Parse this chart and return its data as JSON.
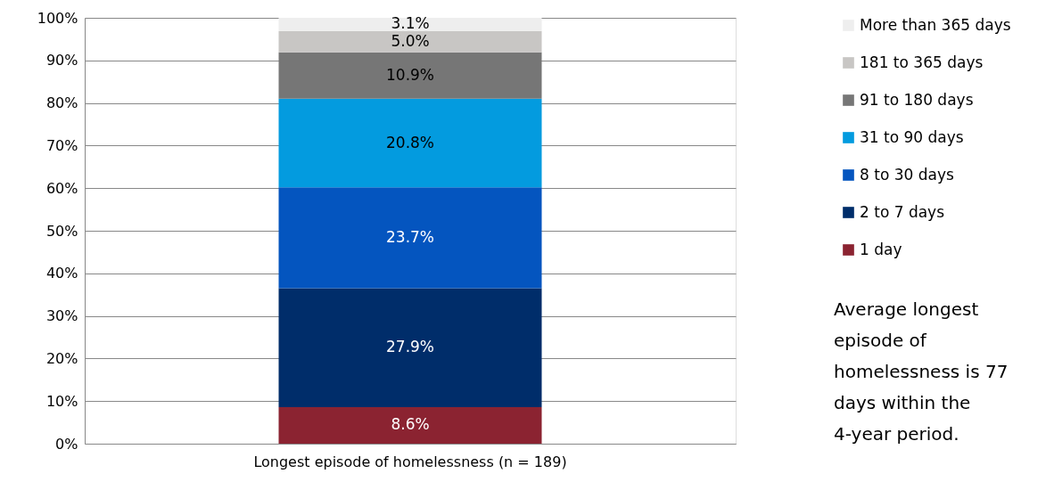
{
  "chart_data": {
    "type": "bar",
    "stacked": true,
    "categories": [
      "Longest episode of homelessness (n = 189)"
    ],
    "series": [
      {
        "name": "1 day",
        "color": "#8b2331",
        "values": [
          8.6
        ],
        "value_labels": [
          "8.6%"
        ]
      },
      {
        "name": "2 to 7 days",
        "color": "#002d6a",
        "values": [
          27.9
        ],
        "value_labels": [
          "27.9%"
        ]
      },
      {
        "name": "8 to 30 days",
        "color": "#0455bf",
        "values": [
          23.7
        ],
        "value_labels": [
          "23.7%"
        ]
      },
      {
        "name": "31 to 90 days",
        "color": "#039bdf",
        "values": [
          20.8
        ],
        "value_labels": [
          "20.8%"
        ]
      },
      {
        "name": "91 to 180 days",
        "color": "#767676",
        "values": [
          10.9
        ],
        "value_labels": [
          "10.9%"
        ]
      },
      {
        "name": "181 to 365 days",
        "color": "#c8c6c4",
        "values": [
          5.0
        ],
        "value_labels": [
          "5.0%"
        ]
      },
      {
        "name": "More than 365 days",
        "color": "#eeeeee",
        "values": [
          3.1
        ],
        "value_labels": [
          "3.1%"
        ]
      }
    ],
    "ylim": [
      0,
      100
    ],
    "yticks": [
      {
        "value": 0,
        "label": "0%"
      },
      {
        "value": 10,
        "label": "10%"
      },
      {
        "value": 20,
        "label": "20%"
      },
      {
        "value": 30,
        "label": "30%"
      },
      {
        "value": 40,
        "label": "40%"
      },
      {
        "value": 50,
        "label": "50%"
      },
      {
        "value": 60,
        "label": "60%"
      },
      {
        "value": 70,
        "label": "70%"
      },
      {
        "value": 80,
        "label": "80%"
      },
      {
        "value": 90,
        "label": "90%"
      },
      {
        "value": 100,
        "label": "100%"
      }
    ],
    "grid": "y",
    "legend": "right",
    "annotations": [
      "Average longest episode of homelessness is 77 days within the 4-year period."
    ]
  }
}
